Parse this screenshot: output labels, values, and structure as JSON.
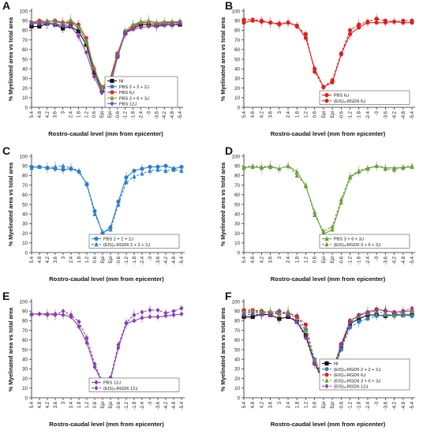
{
  "figure": {
    "x_categories": [
      "5.4",
      "4.8",
      "4.2",
      "3.6",
      "3",
      "2.4",
      "1.8",
      "1.2",
      "0.6",
      "Epi",
      "Epi",
      "-0.6",
      "-1.2",
      "-1.8",
      "-2.4",
      "-3",
      "-3.6",
      "-4.2",
      "-4.8",
      "-5.4"
    ],
    "xlabel": "Rostro-caudal level (mm from epicenter)",
    "ylabel": "% Myelinated area vs total area",
    "y_ticks": [
      0,
      10,
      20,
      30,
      40,
      50,
      60,
      70,
      80,
      90,
      100
    ]
  },
  "chart_data": [
    {
      "panel": "A",
      "type": "line",
      "ylim": [
        0,
        100
      ],
      "series": [
        {
          "name": "NI",
          "color": "#111111",
          "dashed": false,
          "marker": "square",
          "values": [
            84,
            84,
            87,
            86,
            82,
            84,
            79,
            65,
            36,
            18,
            24,
            53,
            77,
            82,
            86,
            86,
            85,
            86,
            86,
            86
          ]
        },
        {
          "name": "PBS 2 + 2 + 2₁l",
          "color": "#2c7fc9",
          "dashed": false,
          "marker": "circle",
          "values": [
            88,
            88,
            88,
            87,
            85,
            88,
            83,
            68,
            40,
            19,
            26,
            55,
            79,
            85,
            88,
            88,
            87,
            87,
            88,
            89
          ]
        },
        {
          "name": "PBS 6₁l",
          "color": "#d62a2a",
          "dashed": false,
          "marker": "circle",
          "values": [
            88,
            90,
            89,
            90,
            88,
            88,
            86,
            72,
            40,
            21,
            28,
            56,
            78,
            83,
            88,
            88,
            87,
            88,
            88,
            88
          ]
        },
        {
          "name": "PBS 3 + 6 + 3₁l",
          "color": "#6aa03c",
          "dashed": false,
          "marker": "triangle",
          "values": [
            89,
            88,
            90,
            89,
            87,
            91,
            84,
            68,
            42,
            20,
            24,
            54,
            79,
            86,
            89,
            90,
            88,
            89,
            89,
            89
          ]
        },
        {
          "name": "PBS 12₁l",
          "color": "#8a3fb0",
          "dashed": false,
          "marker": "diamond",
          "values": [
            87,
            87,
            87,
            86,
            85,
            84,
            74,
            57,
            32,
            15,
            19,
            52,
            77,
            81,
            83,
            84,
            84,
            85,
            86,
            87
          ]
        }
      ]
    },
    {
      "panel": "B",
      "type": "line",
      "ylim": [
        0,
        100
      ],
      "series": [
        {
          "name": "PBS 6₁l",
          "color": "#e02020",
          "dashed": false,
          "marker": "circle",
          "values": [
            88,
            90,
            89,
            88,
            86,
            88,
            85,
            72,
            40,
            21,
            26,
            55,
            76,
            83,
            88,
            88,
            88,
            89,
            88,
            88
          ]
        },
        {
          "name": "(EIS)₄-RGD6 6₁l",
          "color": "#e02020",
          "dashed": true,
          "marker": "circle",
          "values": [
            91,
            91,
            90,
            88,
            87,
            88,
            84,
            76,
            37,
            21,
            28,
            56,
            80,
            86,
            89,
            92,
            90,
            89,
            90,
            90
          ]
        }
      ]
    },
    {
      "panel": "C",
      "type": "line",
      "ylim": [
        0,
        100
      ],
      "series": [
        {
          "name": "PBS 2 + 2 + 2₁l",
          "color": "#2c7fc9",
          "dashed": false,
          "marker": "circle",
          "values": [
            89,
            89,
            88,
            87,
            86,
            87,
            84,
            71,
            43,
            20,
            26,
            53,
            78,
            85,
            87,
            89,
            89,
            90,
            87,
            89
          ]
        },
        {
          "name": "(EIS)₄-RGD6 2 + 2 + 2₁l",
          "color": "#2c7fc9",
          "dashed": true,
          "marker": "triangle",
          "values": [
            88,
            89,
            88,
            89,
            90,
            88,
            85,
            71,
            40,
            21,
            24,
            50,
            73,
            79,
            82,
            85,
            86,
            85,
            86,
            85
          ]
        }
      ]
    },
    {
      "panel": "D",
      "type": "line",
      "ylim": [
        0,
        100
      ],
      "series": [
        {
          "name": "PBS 3 + 6 + 3₁l",
          "color": "#6aa03c",
          "dashed": false,
          "marker": "triangle",
          "values": [
            88,
            89,
            88,
            89,
            87,
            90,
            84,
            69,
            42,
            19,
            24,
            52,
            78,
            84,
            87,
            90,
            88,
            88,
            88,
            89
          ]
        },
        {
          "name": "(EIS)₄-RGD6 3 + 6 + 3₁l",
          "color": "#6aa03c",
          "dashed": true,
          "marker": "triangle",
          "values": [
            89,
            90,
            89,
            90,
            87,
            90,
            80,
            70,
            39,
            22,
            27,
            55,
            79,
            85,
            88,
            90,
            87,
            86,
            89,
            90
          ]
        }
      ]
    },
    {
      "panel": "E",
      "type": "line",
      "ylim": [
        0,
        100
      ],
      "series": [
        {
          "name": "PBS 12₁l",
          "color": "#8a3fb0",
          "dashed": false,
          "marker": "diamond",
          "values": [
            87,
            87,
            87,
            87,
            86,
            84,
            74,
            57,
            32,
            15,
            19,
            52,
            77,
            80,
            83,
            84,
            84,
            85,
            86,
            87
          ]
        },
        {
          "name": "(EIS)₄-RGD6 12₁l",
          "color": "#8a3fb0",
          "dashed": true,
          "marker": "diamond",
          "values": [
            86,
            87,
            86,
            86,
            90,
            86,
            79,
            62,
            35,
            16,
            21,
            55,
            78,
            86,
            89,
            91,
            91,
            88,
            90,
            93
          ]
        }
      ]
    },
    {
      "panel": "F",
      "type": "line",
      "ylim": [
        0,
        100
      ],
      "series": [
        {
          "name": "NI",
          "color": "#111111",
          "dashed": false,
          "marker": "square",
          "values": [
            84,
            84,
            87,
            86,
            82,
            84,
            79,
            65,
            36,
            18,
            24,
            53,
            77,
            82,
            86,
            86,
            85,
            86,
            86,
            86
          ]
        },
        {
          "name": "(EIS)₄-RGD6 2 + 2 + 2₁l",
          "color": "#2c7fc9",
          "dashed": true,
          "marker": "circle",
          "values": [
            88,
            89,
            88,
            89,
            90,
            88,
            85,
            71,
            40,
            21,
            24,
            50,
            73,
            79,
            82,
            85,
            86,
            85,
            86,
            85
          ]
        },
        {
          "name": "(EIS)₄-RGD6 6₁l",
          "color": "#e02020",
          "dashed": true,
          "marker": "circle",
          "values": [
            91,
            91,
            90,
            88,
            87,
            88,
            84,
            76,
            37,
            21,
            28,
            56,
            80,
            86,
            89,
            92,
            90,
            89,
            90,
            90
          ]
        },
        {
          "name": "(EIS)₄-RGD6 3 + 6 + 3₁l",
          "color": "#6aa03c",
          "dashed": true,
          "marker": "triangle",
          "values": [
            89,
            90,
            89,
            90,
            87,
            90,
            80,
            70,
            39,
            22,
            27,
            55,
            79,
            85,
            88,
            90,
            87,
            86,
            89,
            90
          ]
        },
        {
          "name": "(EIS)₄-RGD6 12₁l",
          "color": "#8a3fb0",
          "dashed": true,
          "marker": "diamond",
          "values": [
            86,
            87,
            86,
            86,
            90,
            86,
            79,
            62,
            35,
            16,
            21,
            55,
            78,
            86,
            89,
            91,
            91,
            88,
            90,
            93
          ]
        }
      ]
    }
  ]
}
